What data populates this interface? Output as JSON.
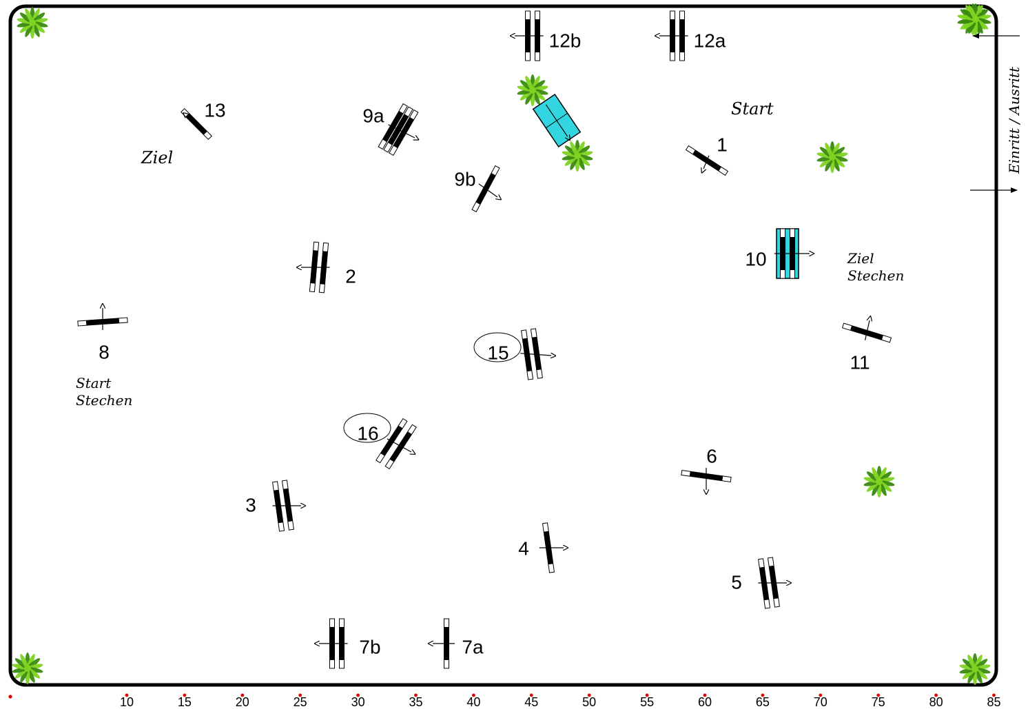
{
  "arena": {
    "gate_label": "Einritt / Ausritt"
  },
  "course_text": {
    "start": "Start",
    "ziel": "Ziel",
    "ziel_stechen_line1": "Ziel",
    "ziel_stechen_line2": "Stechen",
    "start_stechen_line1": "Start",
    "start_stechen_line2": "Stechen"
  },
  "obstacles": [
    {
      "label": "1",
      "type": "vertical",
      "circled": false
    },
    {
      "label": "2",
      "type": "oxer",
      "circled": false
    },
    {
      "label": "3",
      "type": "oxer",
      "circled": false
    },
    {
      "label": "4",
      "type": "vertical",
      "circled": false
    },
    {
      "label": "5",
      "type": "oxer",
      "circled": false
    },
    {
      "label": "6",
      "type": "vertical",
      "circled": false
    },
    {
      "label": "7a",
      "type": "vertical",
      "circled": false
    },
    {
      "label": "7b",
      "type": "oxer",
      "circled": false
    },
    {
      "label": "8",
      "type": "vertical",
      "circled": false
    },
    {
      "label": "9a",
      "type": "triple-bar",
      "circled": false
    },
    {
      "label": "9b",
      "type": "vertical",
      "circled": false
    },
    {
      "label": "10",
      "type": "water-oxer",
      "circled": false
    },
    {
      "label": "11",
      "type": "vertical",
      "circled": false
    },
    {
      "label": "12a",
      "type": "oxer",
      "circled": false
    },
    {
      "label": "12b",
      "type": "oxer",
      "circled": false
    },
    {
      "label": "13",
      "type": "vertical",
      "circled": false
    },
    {
      "label": "15",
      "type": "oxer",
      "circled": true
    },
    {
      "label": "16",
      "type": "oxer",
      "circled": true
    }
  ],
  "decorations": {
    "water_ditch": "water-ditch",
    "plants": [
      "plant-icon",
      "plant-icon",
      "plant-icon",
      "plant-icon",
      "plant-icon",
      "plant-icon",
      "plant-icon",
      "plant-icon",
      "plant-icon"
    ]
  },
  "scale": {
    "labels": [
      "10",
      "15",
      "20",
      "25",
      "30",
      "35",
      "40",
      "45",
      "50",
      "55",
      "60",
      "65",
      "70",
      "75",
      "80",
      "85"
    ],
    "unit_marker_color": "#e00000"
  },
  "colors": {
    "water": "#33d6e0",
    "plant": "#7ed321",
    "plant_dark": "#3a8a10",
    "pole": "#000000"
  }
}
